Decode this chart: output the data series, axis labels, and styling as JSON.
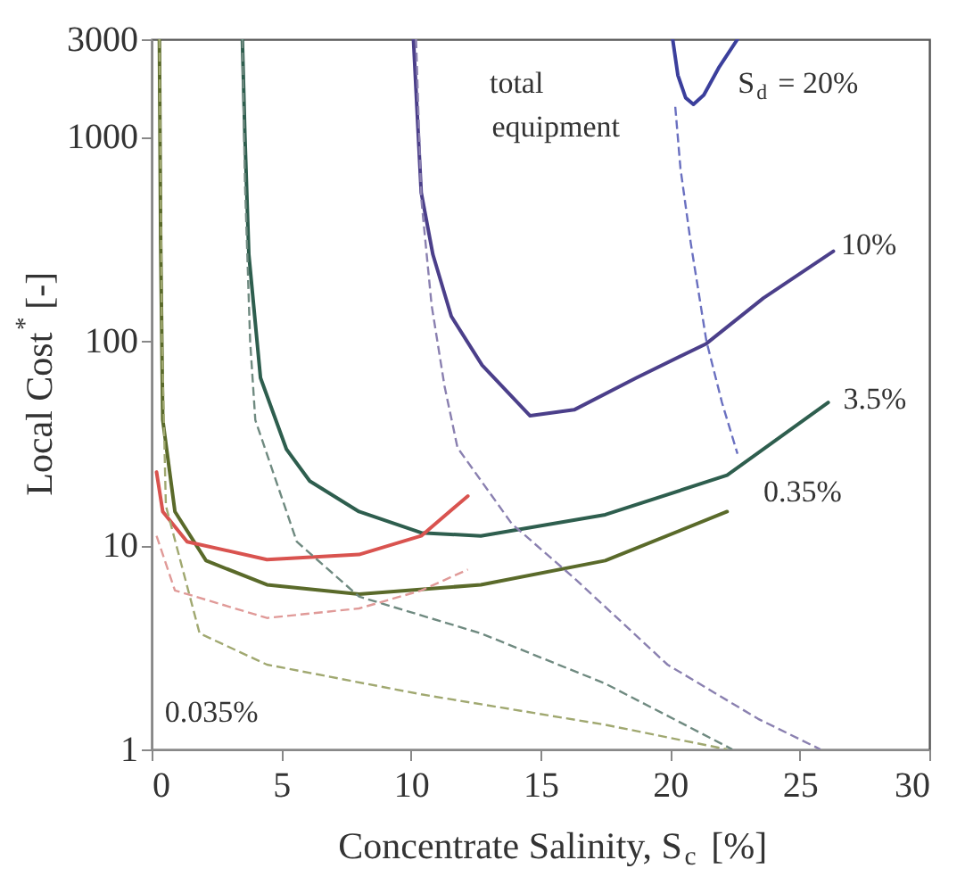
{
  "chart_data": {
    "type": "line",
    "xlabel": "Concentrate Salinity, S$_{c}$ [%]",
    "ylabel": "Local Cost$^{*}$ [-]",
    "xlim": [
      0,
      30
    ],
    "xticks": [
      0,
      5,
      10,
      15,
      20,
      25,
      30
    ],
    "ylim": [
      1,
      3000
    ],
    "yticks": [
      1,
      10,
      100,
      1000,
      3000
    ],
    "log": "y",
    "grid": false,
    "series": [
      {
        "color": "#3b3f9c",
        "line_style": "solid",
        "x": [
          20.1,
          20.3,
          20.6,
          20.9,
          21.3,
          21.9,
          22.6
        ],
        "values": [
          3000,
          2000,
          1550,
          1440,
          1600,
          2200,
          3000
        ]
      },
      {
        "color": "#6a70c0",
        "line_style": "dashed",
        "x": [
          20.2,
          20.4,
          20.8,
          21.4,
          22.0,
          22.6
        ],
        "values": [
          1400,
          700,
          300,
          100,
          50,
          28
        ]
      },
      {
        "color": "#4b3f8a",
        "line_style": "solid",
        "x": [
          10.1,
          10.4,
          10.85,
          11.56,
          12.75,
          14.6,
          16.3,
          18.7,
          21.4,
          23.6,
          26.3
        ],
        "values": [
          3000,
          533,
          265,
          132,
          76,
          43,
          46,
          66,
          97,
          162,
          275
        ]
      },
      {
        "color": "#8a80b0",
        "line_style": "dashed",
        "x": [
          10.2,
          10.4,
          10.8,
          11.3,
          11.8,
          13.9,
          16.3,
          19.9,
          23.4,
          25.8
        ],
        "values": [
          3000,
          500,
          150,
          60,
          30,
          12.7,
          6.9,
          2.6,
          1.41,
          1
        ]
      },
      {
        "color": "#2e5e4e",
        "line_style": "solid",
        "x": [
          3.5,
          3.6,
          3.75,
          4.2,
          5.2,
          6.1,
          8,
          10.4,
          12.7,
          17.5,
          22.2,
          26.1
        ],
        "values": [
          3000,
          1000,
          265,
          66,
          29.5,
          20.6,
          14.6,
          11.5,
          11.1,
          14.1,
          22,
          50
        ]
      },
      {
        "color": "#6f8a80",
        "line_style": "dashed",
        "x": [
          3.5,
          3.6,
          3.8,
          4.0,
          5.6,
          8,
          12.7,
          17.5,
          22.4
        ],
        "values": [
          3000,
          600,
          100,
          41,
          10.4,
          5.6,
          3.7,
          2.1,
          1
        ]
      },
      {
        "color": "#5a6a2a",
        "line_style": "solid",
        "x": [
          0.3,
          0.35,
          0.43,
          0.9,
          2.1,
          4.45,
          8,
          12.7,
          17.5,
          22.2
        ],
        "values": [
          3000,
          300,
          41,
          14.6,
          8.4,
          6.4,
          5.75,
          6.4,
          8.4,
          14.6
        ]
      },
      {
        "color": "#a0a870",
        "line_style": "dashed",
        "x": [
          0.3,
          0.4,
          0.55,
          1.85,
          4.45,
          10.4,
          17.5,
          22.2
        ],
        "values": [
          3000,
          100,
          15.6,
          3.7,
          2.6,
          1.86,
          1.32,
          1
        ]
      },
      {
        "color": "#d9534f",
        "line_style": "solid",
        "x": [
          0.19,
          0.43,
          1.37,
          4.45,
          8.0,
          10.4,
          12.2
        ],
        "values": [
          22.8,
          14.6,
          10.4,
          8.5,
          9.0,
          11.1,
          17.4
        ]
      },
      {
        "color": "#e09a98",
        "line_style": "dashed",
        "x": [
          0.19,
          0.9,
          4.45,
          8.0,
          10.4,
          12.2
        ],
        "values": [
          11.1,
          6.0,
          4.4,
          4.9,
          6.0,
          7.6
        ]
      }
    ],
    "annotations": [
      "total",
      "equipment",
      "S$_{d}$ = 20%",
      "10%",
      "3.5%",
      "0.35%",
      "0.035%"
    ]
  }
}
